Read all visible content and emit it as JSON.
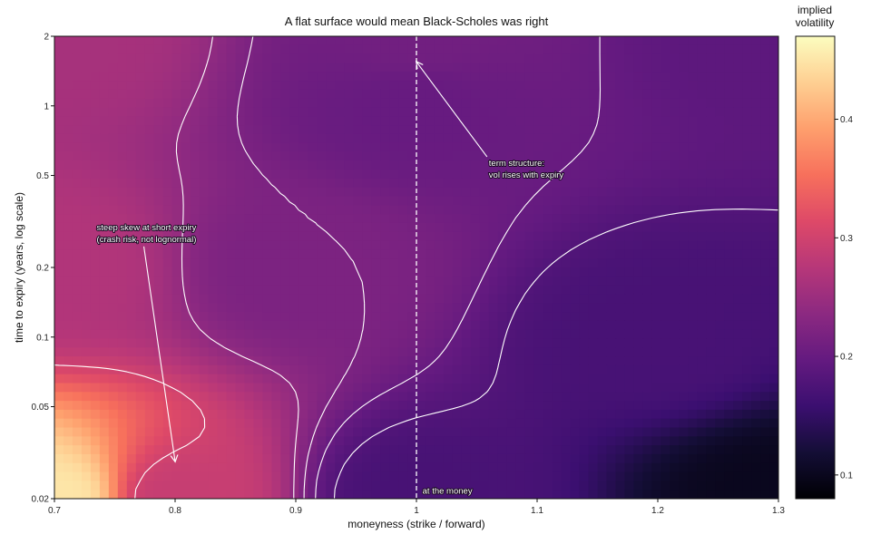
{
  "chart_data": {
    "type": "heatmap",
    "title": "A flat surface would mean Black-Scholes was right",
    "xlabel": "moneyness (strike / forward)",
    "ylabel": "time to expiry (years, log scale)",
    "xlim": [
      0.7,
      1.3
    ],
    "ylim": [
      0.02,
      2
    ],
    "y_scale": "log",
    "x_ticks": [
      0.7,
      0.8,
      0.9,
      1,
      1.1,
      1.2,
      1.3
    ],
    "x_tick_labels": [
      "0.7",
      "0.8",
      "0.9",
      "1",
      "1.1",
      "1.2",
      "1.3"
    ],
    "y_ticks": [
      0.02,
      0.05,
      0.1,
      0.2,
      0.5,
      1,
      2
    ],
    "y_tick_labels": [
      "0.02",
      "0.05",
      "0.1",
      "0.2",
      "0.5",
      "1",
      "2"
    ],
    "colormap": "magma",
    "colorbar": {
      "title_lines": [
        "implied",
        "volatility"
      ],
      "range": [
        0.08,
        0.47
      ],
      "ticks": [
        0.1,
        0.2,
        0.3,
        0.4
      ],
      "tick_labels": [
        "0.1",
        "0.2",
        "0.3",
        "0.4"
      ]
    },
    "contour_levels": [
      0.18,
      0.2,
      0.22,
      0.24,
      0.3
    ],
    "atm_line_x": 1,
    "surface_samples": [
      {
        "x": 0.7,
        "y": 0.02,
        "value": 0.45
      },
      {
        "x": 0.7,
        "y": 0.2,
        "value": 0.27
      },
      {
        "x": 0.7,
        "y": 2,
        "value": 0.26
      },
      {
        "x": 0.8,
        "y": 0.02,
        "value": 0.29
      },
      {
        "x": 0.9,
        "y": 0.2,
        "value": 0.22
      },
      {
        "x": 1.0,
        "y": 0.02,
        "value": 0.17
      },
      {
        "x": 1.0,
        "y": 1,
        "value": 0.2
      },
      {
        "x": 1.0,
        "y": 2,
        "value": 0.21
      },
      {
        "x": 1.2,
        "y": 0.1,
        "value": 0.17
      },
      {
        "x": 1.3,
        "y": 0.02,
        "value": 0.1
      },
      {
        "x": 1.3,
        "y": 2,
        "value": 0.19
      }
    ],
    "annotations": [
      {
        "lines": [
          "steep skew at short expiry",
          "(crash risk, not lognormal)"
        ],
        "text_x": 0.735,
        "text_y": 0.29,
        "arrow_to_x": 0.8,
        "arrow_to_y": 0.029
      },
      {
        "lines": [
          "term structure:",
          "vol rises with expiry"
        ],
        "text_x": 1.06,
        "text_y": 0.55,
        "arrow_to_x": 1.0,
        "arrow_to_y": 1.55
      },
      {
        "lines": [
          "at the money"
        ],
        "text_x": 1.005,
        "text_y": 0.021
      }
    ],
    "grid": false,
    "legend": "colorbar right"
  }
}
